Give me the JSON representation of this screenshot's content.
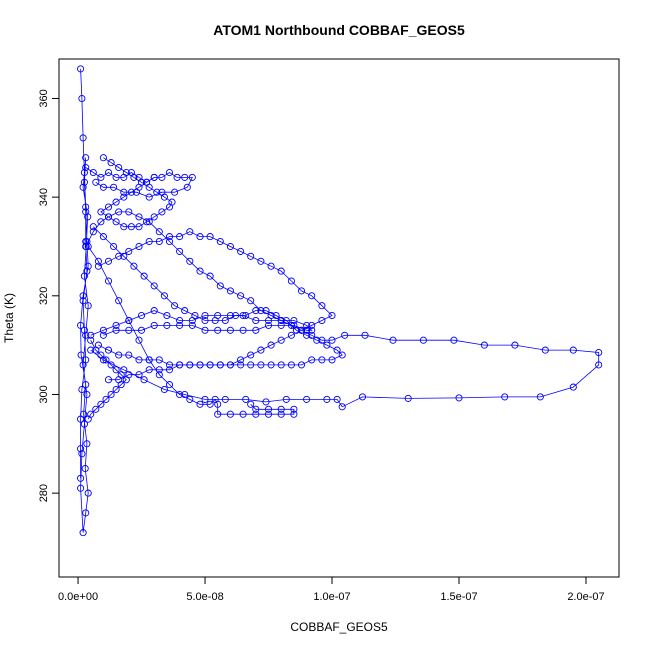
{
  "chart_data": {
    "type": "scatter",
    "title": "ATOM1 Northbound COBBAF_GEOS5",
    "xlabel": "COBBAF_GEOS5",
    "ylabel": "Theta (K)",
    "xlim": [
      -7.5e-09,
      2.13e-07
    ],
    "ylim": [
      263,
      368
    ],
    "x_ticks": [
      {
        "value": 0,
        "label": "0.0e+00"
      },
      {
        "value": 5e-08,
        "label": "5.0e-08"
      },
      {
        "value": 1e-07,
        "label": "1.0e-07"
      },
      {
        "value": 1.5e-07,
        "label": "1.5e-07"
      },
      {
        "value": 2e-07,
        "label": "2.0e-07"
      }
    ],
    "y_ticks": [
      {
        "value": 280,
        "label": "280"
      },
      {
        "value": 300,
        "label": "300"
      },
      {
        "value": 320,
        "label": "320"
      },
      {
        "value": 340,
        "label": "340"
      },
      {
        "value": 360,
        "label": "360"
      }
    ],
    "marker": "open-circle",
    "connected": true,
    "color": "#0000ff",
    "grid": false,
    "series": [
      {
        "x": [
          1e-09,
          1.5e-09,
          2e-09,
          2.5e-09,
          3e-09,
          3.5e-09,
          4e-09,
          2e-09,
          1e-09,
          1.2e-09,
          3e-09,
          2.2e-09,
          3.5e-09,
          2.8e-09,
          4e-09,
          3e-09,
          2e-09,
          1e-09,
          1.5e-09,
          2.5e-09,
          3.5e-09,
          2e-09,
          3e-09,
          4e-09,
          2.5e-09,
          3.2e-09,
          3.8e-09,
          2e-09,
          3e-09,
          2.5e-09,
          3e-09,
          3e-09,
          3.5e-09,
          2e-09,
          2.5e-09,
          3e-09,
          1.5e-09,
          1e-09,
          1e-09,
          1e-09
        ],
        "y": [
          366,
          360,
          352,
          345,
          338,
          331,
          326,
          320,
          314,
          308,
          302,
          296,
          290,
          285,
          280,
          276,
          272,
          281,
          288,
          294,
          300,
          306,
          312,
          318,
          324,
          330,
          336,
          342,
          348,
          343,
          337,
          331,
          325,
          319,
          313,
          307,
          301,
          295,
          289,
          283
        ]
      },
      {
        "x": [
          3e-09,
          6e-09,
          9e-09,
          1.2e-08,
          1.5e-08,
          1.8e-08,
          2.1e-08,
          2.4e-08,
          2.7e-08,
          3e-08,
          3.3e-08,
          3.6e-08,
          3.9e-08,
          4.2e-08,
          4.5e-08,
          4.3e-08,
          3.8e-08,
          3.3e-08,
          2.8e-08,
          2.3e-08,
          1.8e-08,
          1.4e-08,
          1e-08,
          7e-09
        ],
        "y": [
          346,
          345,
          344,
          345,
          344,
          344,
          345,
          344,
          343,
          344,
          344,
          345,
          344,
          344,
          344,
          342,
          341,
          341,
          340,
          341,
          341,
          342,
          342,
          343
        ]
      },
      {
        "x": [
          3e-09,
          6e-09,
          9e-09,
          1.2e-08,
          1.6e-08,
          2e-08,
          2.4e-08,
          2.8e-08,
          3.2e-08,
          3.6e-08,
          4e-08,
          4.4e-08,
          4.8e-08,
          5.2e-08,
          5.6e-08,
          6e-08,
          6.4e-08,
          6.8e-08,
          7.2e-08,
          7.6e-08,
          8e-08,
          8.4e-08,
          8.8e-08,
          9.2e-08,
          9.6e-08,
          1e-07,
          1.05e-07,
          1.13e-07,
          1.24e-07,
          1.36e-07,
          1.48e-07,
          1.6e-07,
          1.72e-07,
          1.84e-07,
          1.95e-07,
          2.05e-07,
          2.05e-07,
          1.95e-07,
          1.82e-07,
          1.68e-07,
          1.5e-07,
          1.3e-07,
          1.12e-07,
          1.04e-07,
          1.02e-07,
          9.8e-08,
          9e-08,
          8.2e-08,
          7.4e-08,
          6.6e-08,
          5.8e-08,
          5e-08,
          4.2e-08,
          3.4e-08,
          2.6e-08,
          1.8e-08,
          1e-08,
          5e-09
        ],
        "y": [
          330,
          333,
          335,
          336,
          337,
          337,
          336,
          335,
          333,
          331,
          329,
          327,
          325,
          324,
          322,
          321,
          320,
          319,
          317,
          316,
          315,
          314,
          313,
          312,
          311,
          311,
          312,
          312,
          311,
          311,
          311,
          310,
          310,
          309,
          309,
          308.5,
          306,
          301.5,
          299.5,
          299.5,
          299.3,
          299.2,
          299.5,
          297.5,
          299,
          299,
          299,
          299,
          298.5,
          299,
          299,
          299,
          300,
          301,
          303,
          305,
          307,
          309
        ]
      },
      {
        "x": [
          4e-09,
          8e-09,
          1.2e-08,
          1.6e-08,
          2e-08,
          2.4e-08,
          2.8e-08,
          3.2e-08,
          3.6e-08,
          4e-08,
          4.4e-08,
          4.8e-08,
          5.2e-08,
          5.4e-08,
          5.5e-08,
          5.5e-08,
          6e-08,
          6.5e-08,
          7e-08,
          7.5e-08,
          8e-08,
          8.5e-08,
          8.5e-08,
          8e-08,
          7.5e-08,
          7e-08,
          6.8e-08
        ],
        "y": [
          330,
          327,
          323,
          319,
          315,
          311,
          307,
          304,
          302,
          300,
          299,
          298,
          298,
          299,
          298,
          296,
          296,
          296,
          296,
          296,
          296,
          296,
          297,
          297,
          297,
          297,
          298
        ]
      },
      {
        "x": [
          5e-09,
          1e-08,
          1.5e-08,
          2e-08,
          2.5e-08,
          3e-08,
          3.5e-08,
          4e-08,
          4.5e-08,
          5e-08,
          5.5e-08,
          6e-08,
          6.5e-08,
          7e-08,
          7.5e-08,
          8e-08,
          8.5e-08,
          9e-08,
          9.2e-08,
          9e-08,
          8.5e-08,
          8e-08,
          7.5e-08,
          7e-08,
          6.5e-08,
          6e-08,
          5.5e-08,
          5e-08,
          4.5e-08,
          4e-08,
          3.5e-08,
          3e-08,
          2.5e-08,
          2e-08,
          1.5e-08,
          1e-08
        ],
        "y": [
          312,
          313,
          314,
          315,
          316,
          317,
          316,
          315,
          315,
          316,
          316,
          316,
          316,
          315,
          315,
          315,
          315,
          314,
          313,
          313,
          314,
          314,
          314,
          313,
          313,
          313,
          313,
          313,
          314,
          314,
          314,
          314,
          313,
          313,
          313,
          312
        ]
      },
      {
        "x": [
          6e-09,
          1e-08,
          1.4e-08,
          1.8e-08,
          2.2e-08,
          2.6e-08,
          3e-08,
          3.4e-08,
          3.8e-08,
          4.2e-08,
          4.6e-08,
          5e-08,
          5.4e-08,
          5.8e-08,
          6.2e-08,
          6.6e-08,
          7e-08,
          7.4e-08,
          7.8e-08,
          8.2e-08,
          8.6e-08,
          9e-08,
          9.4e-08,
          9.8e-08,
          1.02e-07,
          1.04e-07,
          1e-07,
          9.6e-08,
          9.2e-08,
          8.8e-08,
          8.4e-08,
          8e-08,
          7.6e-08,
          7.2e-08,
          6.8e-08,
          6.4e-08,
          6e-08,
          5.6e-08,
          5.2e-08,
          4.8e-08,
          4.4e-08,
          4e-08,
          3.6e-08,
          3.2e-08,
          2.8e-08,
          2.4e-08,
          2e-08,
          1.6e-08,
          1.2e-08,
          8e-09
        ],
        "y": [
          334,
          332,
          330,
          328,
          326,
          324,
          322,
          320,
          318,
          317,
          316,
          315,
          315,
          315,
          316,
          316,
          317,
          317,
          316,
          315,
          313,
          312,
          311,
          310,
          309,
          308,
          307,
          307,
          307,
          306,
          306,
          306,
          306,
          306,
          306,
          306,
          306,
          306,
          306,
          306,
          306,
          306,
          306,
          307,
          307,
          307,
          308,
          308,
          309,
          310
        ]
      },
      {
        "x": [
          8e-09,
          1.2e-08,
          1.6e-08,
          2e-08,
          2.4e-08,
          2.8e-08,
          3.2e-08,
          3.6e-08,
          4e-08,
          4.4e-08,
          4.8e-08,
          5.2e-08,
          5.6e-08,
          6e-08,
          6.4e-08,
          6.8e-08,
          7.2e-08,
          7.6e-08,
          8e-08,
          8.4e-08,
          8.8e-08,
          9.2e-08,
          9.6e-08,
          1e-07,
          9.6e-08,
          9.2e-08,
          8.8e-08,
          8.4e-08,
          8e-08,
          7.6e-08,
          7.2e-08,
          6.8e-08,
          6.4e-08,
          6e-08,
          5.6e-08,
          5.2e-08,
          4.8e-08,
          4.4e-08,
          4e-08,
          3.6e-08,
          3.2e-08,
          2.8e-08,
          2.4e-08,
          2e-08,
          1.6e-08,
          1.2e-08
        ],
        "y": [
          326,
          327,
          328,
          329,
          330,
          331,
          331,
          332,
          332,
          333,
          332,
          332,
          331,
          330,
          329,
          328,
          327,
          326,
          325,
          323,
          321,
          320,
          318,
          316,
          315,
          314,
          313,
          312,
          311,
          310,
          309,
          308,
          307,
          306,
          306,
          306,
          306,
          306,
          306,
          305,
          305,
          305,
          304,
          304,
          303,
          303
        ]
      },
      {
        "x": [
          1e-08,
          1.3e-08,
          1.6e-08,
          1.9e-08,
          2.2e-08,
          2.5e-08,
          2.8e-08,
          3.1e-08,
          3.4e-08,
          3.7e-08,
          3.6e-08,
          3.3e-08,
          3e-08,
          2.7e-08,
          2.4e-08,
          2.1e-08,
          1.8e-08,
          1.5e-08,
          1.2e-08,
          9e-09,
          1.2e-08,
          1.5e-08,
          1.8e-08,
          2.1e-08,
          2.4e-08,
          2.7e-08,
          3e-08
        ],
        "y": [
          348,
          347,
          346,
          345,
          344,
          343,
          342,
          341,
          340,
          339,
          338,
          337,
          336,
          335,
          334,
          334,
          334,
          335,
          336,
          337,
          338,
          339,
          340,
          341,
          342,
          343,
          344
        ]
      },
      {
        "x": [
          5e-09,
          7e-09,
          9e-09,
          1.1e-08,
          1.3e-08,
          1.5e-08,
          1.7e-08,
          1.9e-08,
          1.7e-08,
          1.5e-08,
          1.3e-08,
          1.1e-08,
          9e-09,
          7e-09,
          5e-09,
          4e-09
        ],
        "y": [
          311,
          309,
          308,
          307,
          306,
          305,
          304,
          303,
          302,
          301,
          300,
          299,
          298,
          297,
          296,
          295
        ]
      }
    ]
  }
}
